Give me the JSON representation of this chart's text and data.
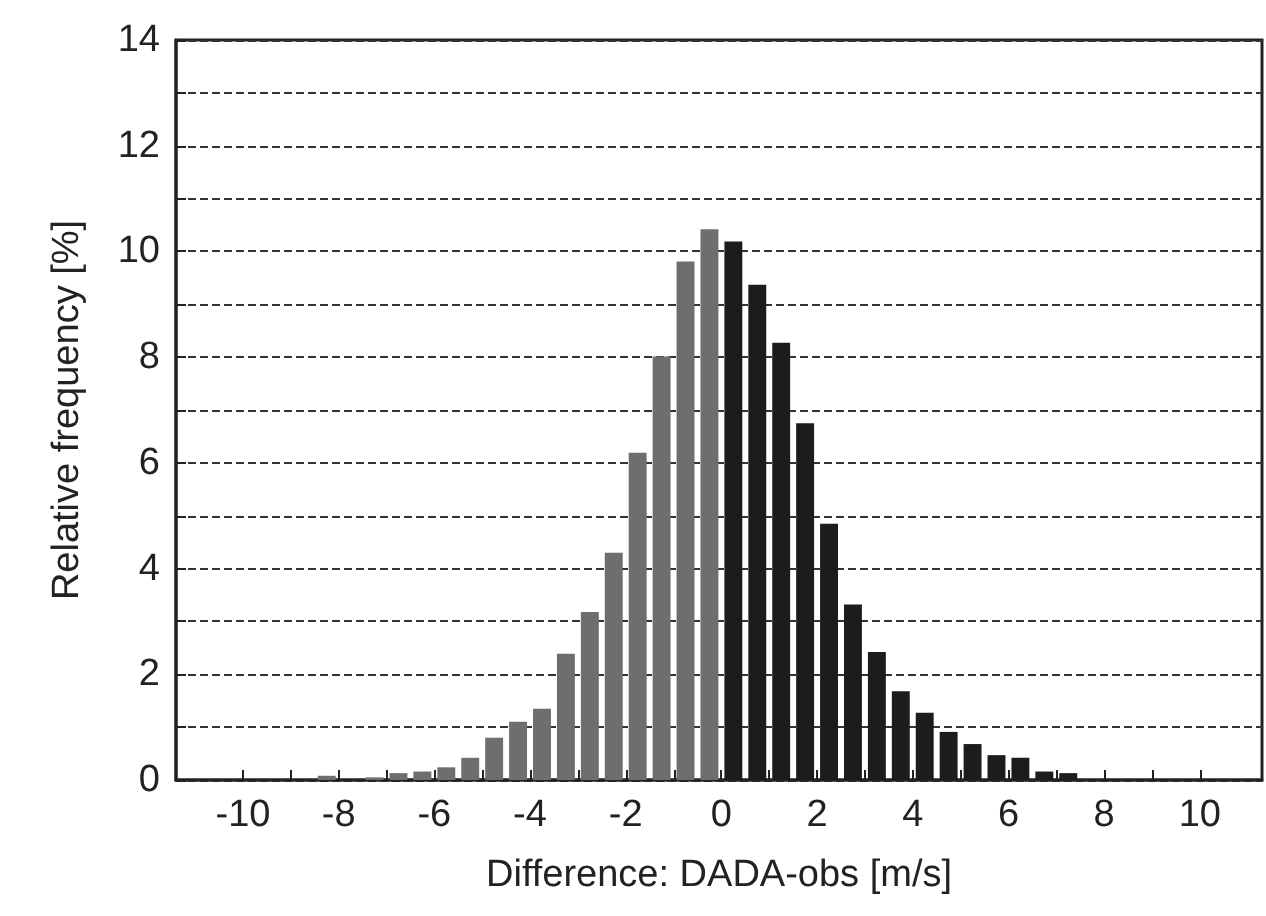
{
  "chart_data": {
    "type": "histogram",
    "xlabel": "Difference: DADA-obs [m/s]",
    "ylabel": "Relative frequency [%]",
    "bins": [
      -8.5,
      -8,
      -7.5,
      -7,
      -6.5,
      -6,
      -5.5,
      -5,
      -4.5,
      -4,
      -3.5,
      -3,
      -2.5,
      -2,
      -1.5,
      -1,
      -0.5,
      0,
      0.5,
      1,
      1.5,
      2,
      2.5,
      3,
      3.5,
      4,
      4.5,
      5,
      5.5,
      6,
      6.5,
      7,
      7.5,
      8,
      8.5
    ],
    "values": [
      0.08,
      null,
      0.05,
      0.13,
      0.16,
      0.24,
      0.42,
      0.8,
      1.1,
      1.35,
      2.39,
      3.18,
      4.3,
      6.19,
      8.01,
      9.81,
      10.42,
      10.19,
      9.37,
      8.27,
      6.75,
      4.85,
      3.32,
      2.42,
      1.68,
      1.27,
      0.91,
      0.68,
      0.47,
      0.42,
      0.16,
      0.13,
      null,
      null
    ],
    "colors": [
      "#6e6e6e",
      "#6e6e6e",
      "#6e6e6e",
      "#6e6e6e",
      "#6e6e6e",
      "#6e6e6e",
      "#6e6e6e",
      "#6e6e6e",
      "#6e6e6e",
      "#6e6e6e",
      "#6e6e6e",
      "#6e6e6e",
      "#6e6e6e",
      "#6e6e6e",
      "#6e6e6e",
      "#6e6e6e",
      "#6e6e6e",
      "#1c1c1c",
      "#1c1c1c",
      "#1c1c1c",
      "#1c1c1c",
      "#1c1c1c",
      "#1c1c1c",
      "#1c1c1c",
      "#1c1c1c",
      "#1c1c1c",
      "#1c1c1c",
      "#1c1c1c",
      "#1c1c1c",
      "#1c1c1c",
      "#1c1c1c",
      "#1c1c1c",
      "#1c1c1c",
      "#1c1c1c"
    ],
    "xlim": [
      -11.4,
      11.3
    ],
    "xticks": [
      -10,
      {
        "value": -9,
        "label": null
      },
      -8,
      {
        "value": -7,
        "label": null
      },
      -6,
      {
        "value": -5,
        "label": null
      },
      -4,
      {
        "value": -3,
        "label": null
      },
      -2,
      {
        "value": -1,
        "label": null
      },
      0,
      {
        "value": 1,
        "label": null
      },
      2,
      {
        "value": 3,
        "label": null
      },
      4,
      {
        "value": 5,
        "label": null
      },
      6,
      {
        "value": 7,
        "label": null
      },
      8,
      {
        "value": 9,
        "label": null
      },
      10
    ],
    "ylim": [
      0,
      14
    ],
    "yticks": [
      0,
      {
        "value": 1,
        "label": null
      },
      2,
      {
        "value": 3,
        "label": null
      },
      4,
      {
        "value": 5,
        "label": null
      },
      6,
      {
        "value": 7,
        "label": null
      },
      8,
      {
        "value": 9,
        "label": null
      },
      10,
      {
        "value": 11,
        "label": null
      },
      12,
      {
        "value": 13,
        "label": null
      },
      14
    ],
    "grid": "y",
    "line_style": "dashed"
  }
}
